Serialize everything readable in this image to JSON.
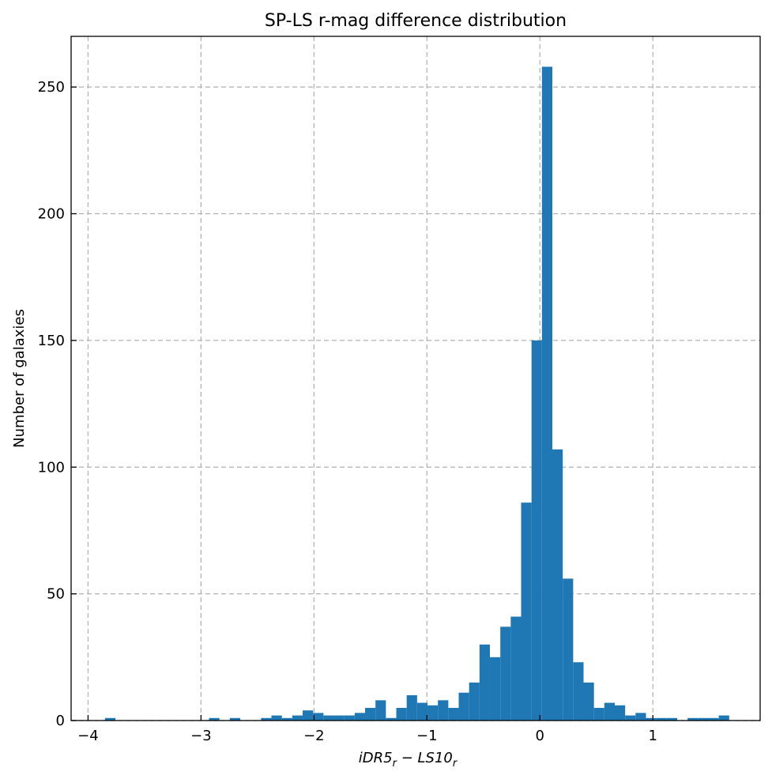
{
  "chart_data": {
    "type": "bar",
    "title": "SP-LS r-mag difference distribution",
    "xlabel_parts": {
      "a": "iDR5",
      "a_sub": "r",
      "minus": " − ",
      "b": "LS10",
      "b_sub": "r"
    },
    "ylabel": "Number of galaxies",
    "xlim": [
      -4.15,
      1.95
    ],
    "ylim": [
      0,
      270
    ],
    "xticks": [
      -4,
      -3,
      -2,
      -1,
      0,
      1
    ],
    "xtick_labels": [
      "−4",
      "−3",
      "−2",
      "−1",
      "0",
      "1"
    ],
    "yticks": [
      0,
      50,
      100,
      150,
      200,
      250
    ],
    "ytick_labels": [
      "0",
      "50",
      "100",
      "150",
      "200",
      "250"
    ],
    "grid": true,
    "color": "#1f77b4",
    "bin_width": 0.0921,
    "bin_start": -3.85,
    "counts": [
      1,
      0,
      0,
      0,
      0,
      0,
      0,
      0,
      0,
      0,
      1,
      0,
      1,
      0,
      0,
      1,
      2,
      1,
      2,
      4,
      3,
      2,
      2,
      2,
      3,
      5,
      8,
      1,
      5,
      10,
      7,
      6,
      8,
      5,
      11,
      15,
      30,
      25,
      37,
      41,
      86,
      150,
      258,
      107,
      56,
      23,
      15,
      5,
      7,
      6,
      2,
      3,
      1,
      1,
      1,
      0,
      1,
      1,
      1,
      2
    ]
  }
}
